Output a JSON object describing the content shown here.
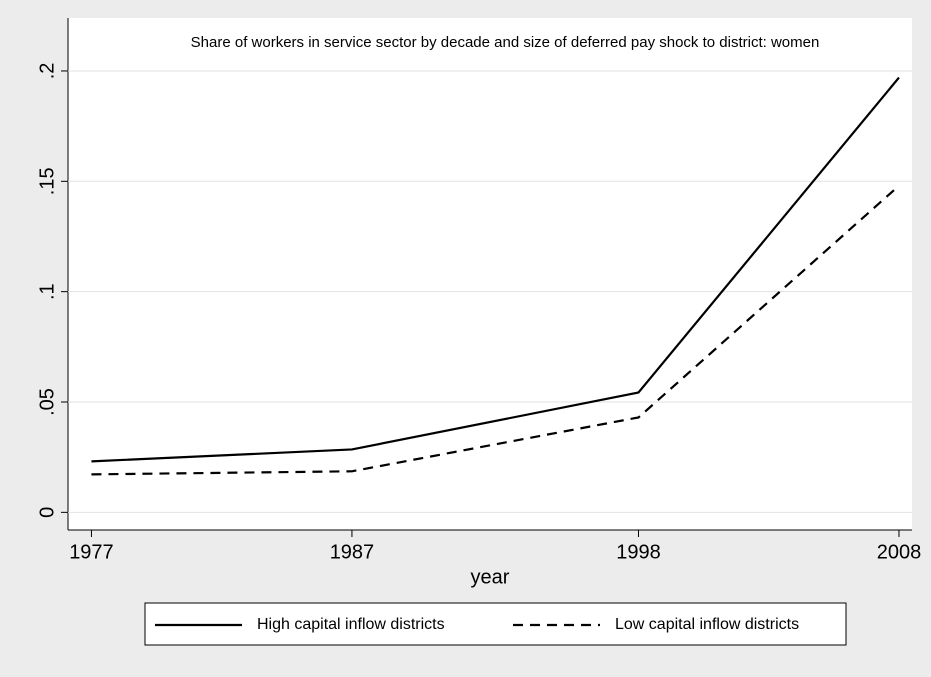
{
  "chart_data": {
    "type": "line",
    "title": "Share of workers in service sector by decade and size of deferred pay shock to district: women",
    "x_label": "year",
    "x": [
      1977,
      1987,
      1998,
      2008
    ],
    "series": [
      {
        "name": "High capital inflow districts",
        "color": "#000000",
        "style": "solid",
        "values": [
          0.0231,
          0.0285,
          0.0543,
          0.197
        ]
      },
      {
        "name": "Low capital inflow districts",
        "color": "#000000",
        "style": "dashed",
        "values": [
          0.0172,
          0.0186,
          0.043,
          0.148
        ]
      }
    ],
    "xlim": [
      1976.1,
      2008.5
    ],
    "xticks": [
      1977,
      1987,
      1998,
      2008
    ],
    "ylim": [
      -0.008,
      0.224
    ],
    "yticks": [
      0,
      {
        "value": 0.05,
        "label": ".05"
      },
      {
        "value": 0.1,
        "label": ".1"
      },
      {
        "value": 0.15,
        "label": ".15"
      },
      {
        "value": 0.2,
        "label": ".2"
      }
    ],
    "grid": true,
    "legend": "bottom"
  }
}
